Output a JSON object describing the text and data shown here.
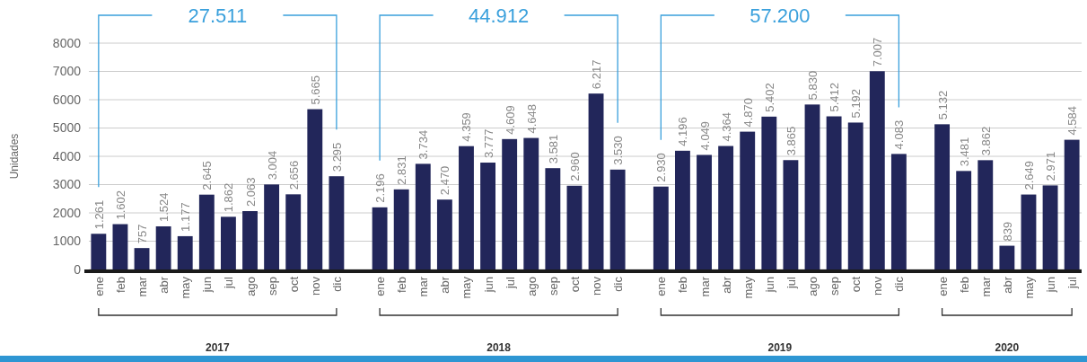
{
  "chart_data": {
    "type": "bar",
    "ylabel": "Unidades",
    "categories": [
      "ene",
      "feb",
      "mar",
      "abr",
      "may",
      "jun",
      "jul",
      "ago",
      "sep",
      "oct",
      "nov",
      "dic",
      null,
      "ene",
      "feb",
      "mar",
      "abr",
      "may",
      "jun",
      "jul",
      "ago",
      "sep",
      "oct",
      "nov",
      "dic",
      null,
      "ene",
      "feb",
      "mar",
      "abr",
      "may",
      "jun",
      "jul",
      "ago",
      "sep",
      "oct",
      "nov",
      "dic",
      null,
      "ene",
      "feb",
      "mar",
      "abr",
      "may",
      "jun",
      "jul"
    ],
    "values": [
      1261,
      1602,
      757,
      1524,
      1177,
      2645,
      1862,
      2063,
      3004,
      2656,
      5665,
      3295,
      null,
      2196,
      2831,
      3734,
      2470,
      4359,
      3777,
      4609,
      4648,
      3581,
      2960,
      6217,
      3530,
      null,
      2930,
      4196,
      4049,
      4364,
      4870,
      5402,
      3865,
      5830,
      5412,
      5192,
      7007,
      4083,
      null,
      5132,
      3481,
      3862,
      839,
      2649,
      2971,
      4584
    ],
    "value_labels": [
      "1.261",
      "1.602",
      "757",
      "1.524",
      "1.177",
      "2.645",
      "1.862",
      "2.063",
      "3.004",
      "2.656",
      "5.665",
      "3.295",
      null,
      "2.196",
      "2.831",
      "3.734",
      "2.470",
      "4.359",
      "3.777",
      "4.609",
      "4.648",
      "3.581",
      "2.960",
      "6.217",
      "3.530",
      null,
      "2.930",
      "4.196",
      "4.049",
      "4.364",
      "4.870",
      "5.402",
      "3.865",
      "5.830",
      "5.412",
      "5.192",
      "7.007",
      "4.083",
      null,
      "5.132",
      "3.481",
      "3.862",
      "839",
      "2.649",
      "2.971",
      "4.584"
    ],
    "color": "#22265a",
    "ylim": [
      0,
      8000
    ],
    "yticks": [
      0,
      1000,
      2000,
      3000,
      4000,
      5000,
      6000,
      7000,
      8000
    ],
    "grid": "y",
    "annotations": [
      "27.511",
      "44.912",
      "57.200",
      "2017",
      "2018",
      "2019",
      "2020"
    ]
  }
}
